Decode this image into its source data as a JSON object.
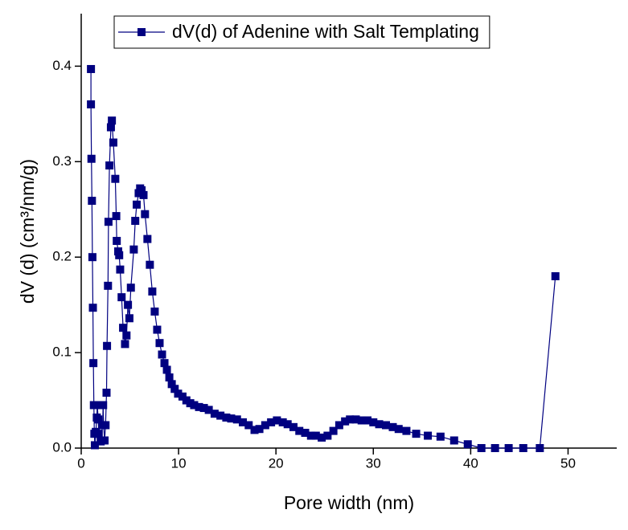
{
  "chart_data": {
    "type": "line",
    "x_label": "Pore width (nm)",
    "y_label": "dV (d) (cm³/nm/g)",
    "legend": "top-left",
    "marker": "square",
    "xlim": [
      0,
      55
    ],
    "xticks": [
      0,
      10,
      20,
      30,
      40,
      50
    ],
    "ylim": [
      0,
      0.455
    ],
    "yticks": [
      {
        "value": 0,
        "label": "0.0"
      },
      0.1,
      0.2,
      0.3,
      0.4
    ],
    "x": [
      1.0,
      1.0,
      1.05,
      1.1,
      1.15,
      1.2,
      1.25,
      1.3,
      1.35,
      1.4,
      1.5,
      1.6,
      1.65,
      1.75,
      1.8,
      2.0,
      2.2,
      2.25,
      2.3,
      2.4,
      2.5,
      2.6,
      2.65,
      2.75,
      2.8,
      2.9,
      3.05,
      3.15,
      3.3,
      3.5,
      3.6,
      3.65,
      3.8,
      3.9,
      4.0,
      4.15,
      4.3,
      4.5,
      4.65,
      4.8,
      4.95,
      5.1,
      5.4,
      5.55,
      5.7,
      5.9,
      6.05,
      6.2,
      6.4,
      6.55,
      6.8,
      7.05,
      7.3,
      7.55,
      7.8,
      8.05,
      8.3,
      8.55,
      8.8,
      9.05,
      9.3,
      9.6,
      9.95,
      10.4,
      10.8,
      11.2,
      11.6,
      12.1,
      12.6,
      13.1,
      13.7,
      14.3,
      14.9,
      15.4,
      16.0,
      16.6,
      17.2,
      17.8,
      18.3,
      18.9,
      19.5,
      20.1,
      20.7,
      21.2,
      21.8,
      22.4,
      23.0,
      23.6,
      24.1,
      24.7,
      25.3,
      25.9,
      26.5,
      27.1,
      27.6,
      28.2,
      28.8,
      29.4,
      30.0,
      30.6,
      31.3,
      32.0,
      32.6,
      33.4,
      34.4,
      35.6,
      36.9,
      38.3,
      39.7,
      41.1,
      42.5,
      43.9,
      45.4,
      47.1,
      48.7
    ],
    "series": [
      {
        "name": "dV(d) of Adenine with Salt Templating",
        "color": "#000080",
        "values": [
          0.397,
          0.36,
          0.303,
          0.259,
          0.2,
          0.147,
          0.089,
          0.045,
          0.015,
          0.003,
          0.017,
          0.032,
          0.045,
          0.03,
          0.015,
          0.007,
          0.024,
          0.045,
          0.024,
          0.008,
          0.024,
          0.058,
          0.107,
          0.17,
          0.237,
          0.296,
          0.336,
          0.343,
          0.32,
          0.282,
          0.243,
          0.217,
          0.206,
          0.202,
          0.187,
          0.158,
          0.126,
          0.109,
          0.118,
          0.15,
          0.136,
          0.168,
          0.208,
          0.238,
          0.255,
          0.267,
          0.272,
          0.27,
          0.265,
          0.245,
          0.219,
          0.192,
          0.164,
          0.143,
          0.124,
          0.11,
          0.098,
          0.089,
          0.082,
          0.074,
          0.067,
          0.062,
          0.057,
          0.054,
          0.05,
          0.047,
          0.045,
          0.043,
          0.042,
          0.04,
          0.036,
          0.034,
          0.032,
          0.031,
          0.03,
          0.027,
          0.024,
          0.019,
          0.02,
          0.024,
          0.027,
          0.029,
          0.027,
          0.025,
          0.022,
          0.018,
          0.016,
          0.013,
          0.013,
          0.011,
          0.013,
          0.018,
          0.024,
          0.028,
          0.03,
          0.03,
          0.029,
          0.029,
          0.027,
          0.025,
          0.024,
          0.022,
          0.02,
          0.018,
          0.015,
          0.013,
          0.012,
          0.008,
          0.004,
          0,
          0,
          0,
          0,
          0,
          0.18
        ]
      }
    ]
  }
}
